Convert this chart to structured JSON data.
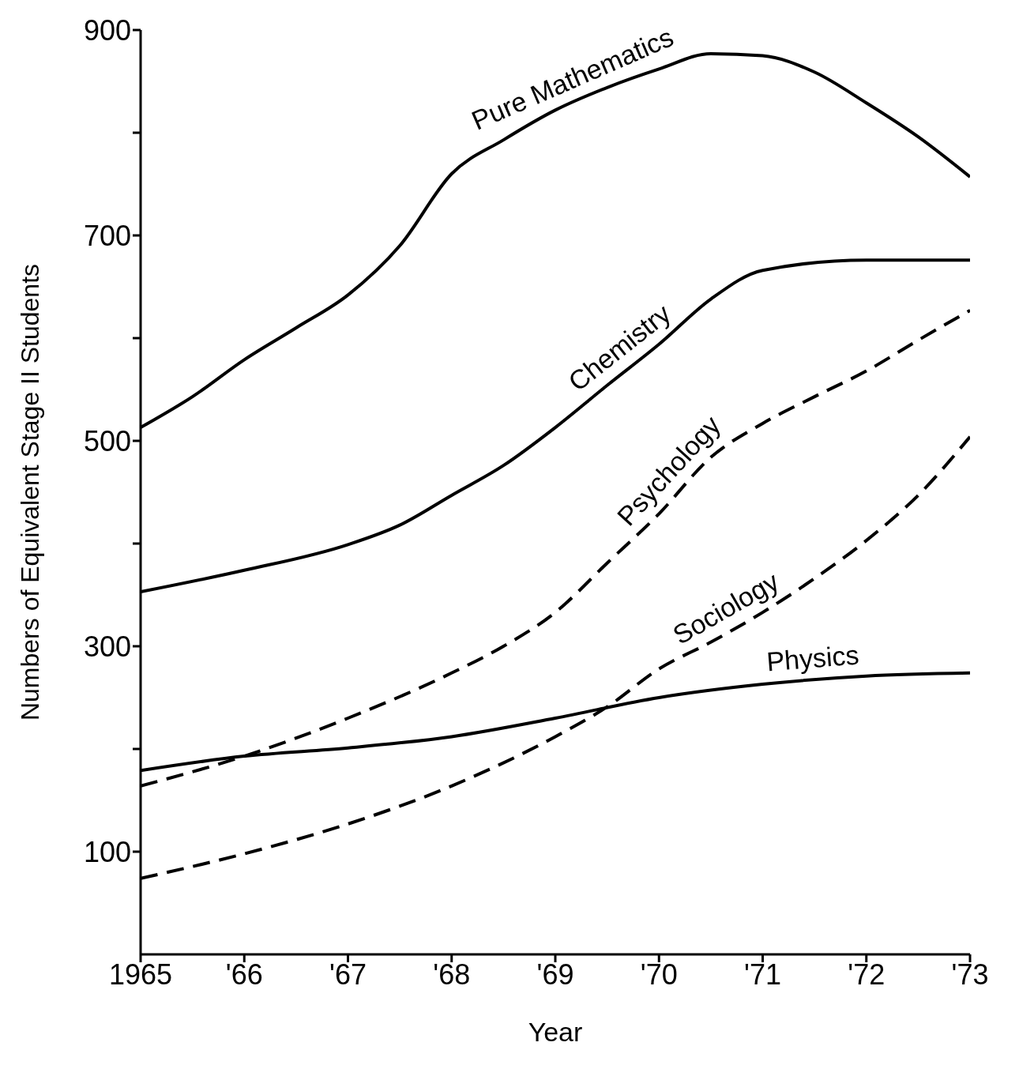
{
  "chart_data": {
    "type": "line",
    "xlabel": "Year",
    "ylabel": "Numbers of Equivalent Stage II Students",
    "xlim": [
      1965,
      1973
    ],
    "ylim": [
      0,
      900
    ],
    "xticks": [
      {
        "value": 1965,
        "label": "1965"
      },
      {
        "value": 1966,
        "label": "'66"
      },
      {
        "value": 1967,
        "label": "'67"
      },
      {
        "value": 1968,
        "label": "'68"
      },
      {
        "value": 1969,
        "label": "'69"
      },
      {
        "value": 1970,
        "label": "'70"
      },
      {
        "value": 1971,
        "label": "'71"
      },
      {
        "value": 1972,
        "label": "'72"
      },
      {
        "value": 1973,
        "label": "'73"
      }
    ],
    "yticks": [
      100,
      {
        "value": 200,
        "label": null
      },
      300,
      {
        "value": 400,
        "label": null
      },
      500,
      {
        "value": 600,
        "label": null
      },
      700,
      {
        "value": 800,
        "label": null
      },
      900
    ],
    "series": [
      {
        "name": "Pure Mathematics",
        "color": "#000000",
        "line_style": "solid",
        "x": [
          1965,
          1965.5,
          1966,
          1966.5,
          1967,
          1967.5,
          1968,
          1968.5,
          1969,
          1969.5,
          1970,
          1970.5,
          1971,
          1971.5,
          1972,
          1972.5,
          1973
        ],
        "values": [
          513,
          543,
          579,
          610,
          642,
          690,
          760,
          793,
          822,
          844,
          862,
          877,
          875,
          859,
          829,
          796,
          757
        ]
      },
      {
        "name": "Chemistry",
        "color": "#000000",
        "line_style": "solid",
        "x": [
          1965,
          1966,
          1967,
          1967.5,
          1968,
          1968.5,
          1969,
          1969.5,
          1970,
          1970.5,
          1971,
          1972,
          1973
        ],
        "values": [
          353,
          374,
          399,
          418,
          447,
          476,
          513,
          554,
          594,
          638,
          666,
          676,
          676
        ]
      },
      {
        "name": "Psychology",
        "color": "#000000",
        "line_style": "dashed",
        "x": [
          1965,
          1966,
          1967,
          1968,
          1968.5,
          1969,
          1969.5,
          1970,
          1970.5,
          1971,
          1971.5,
          1972,
          1972.5,
          1973
        ],
        "values": [
          164,
          193,
          230,
          274,
          300,
          333,
          381,
          429,
          484,
          517,
          543,
          568,
          598,
          627
        ]
      },
      {
        "name": "Sociology",
        "color": "#000000",
        "line_style": "dashed",
        "x": [
          1965,
          1966,
          1967,
          1968,
          1969,
          1969.5,
          1970,
          1970.5,
          1971,
          1971.5,
          1972,
          1972.5,
          1973
        ],
        "values": [
          74,
          98,
          127,
          164,
          212,
          241,
          278,
          304,
          333,
          366,
          403,
          447,
          504
        ]
      },
      {
        "name": "Physics",
        "color": "#000000",
        "line_style": "solid",
        "x": [
          1965,
          1966,
          1967,
          1968,
          1969,
          1970,
          1971,
          1972,
          1973
        ],
        "values": [
          179,
          193,
          201,
          212,
          230,
          250,
          263,
          271,
          274
        ]
      }
    ]
  }
}
